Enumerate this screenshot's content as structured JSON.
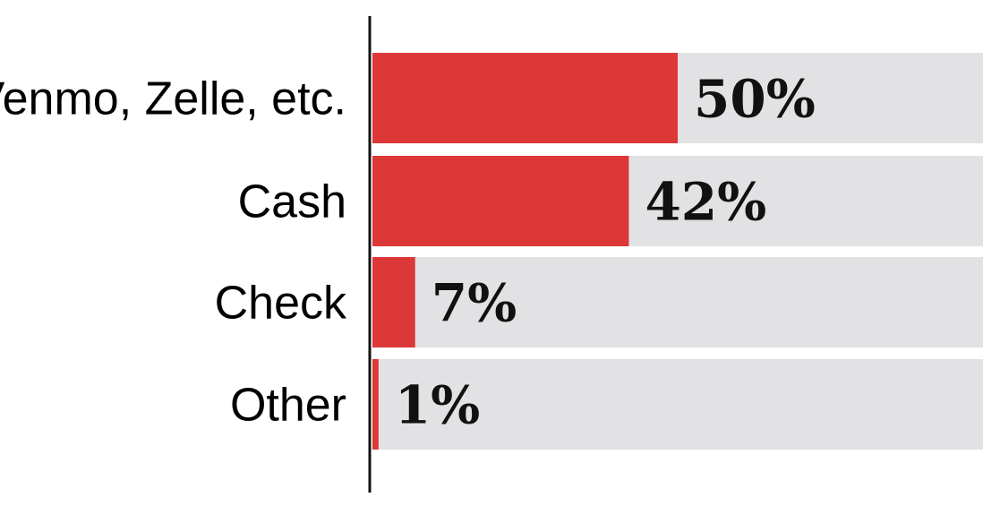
{
  "chart_data": {
    "type": "bar",
    "orientation": "horizontal",
    "categories": [
      "Venmo, Zelle, etc.",
      "Cash",
      "Check",
      "Other"
    ],
    "values": [
      50,
      42,
      7,
      1
    ],
    "value_labels": [
      "50%",
      "42%",
      "7%",
      "1%"
    ],
    "xlim": [
      0,
      100
    ],
    "grid": false,
    "legend": "none"
  },
  "colors": {
    "bar": "#dc3838",
    "track": "#e2e2e4",
    "axis": "#111111"
  }
}
